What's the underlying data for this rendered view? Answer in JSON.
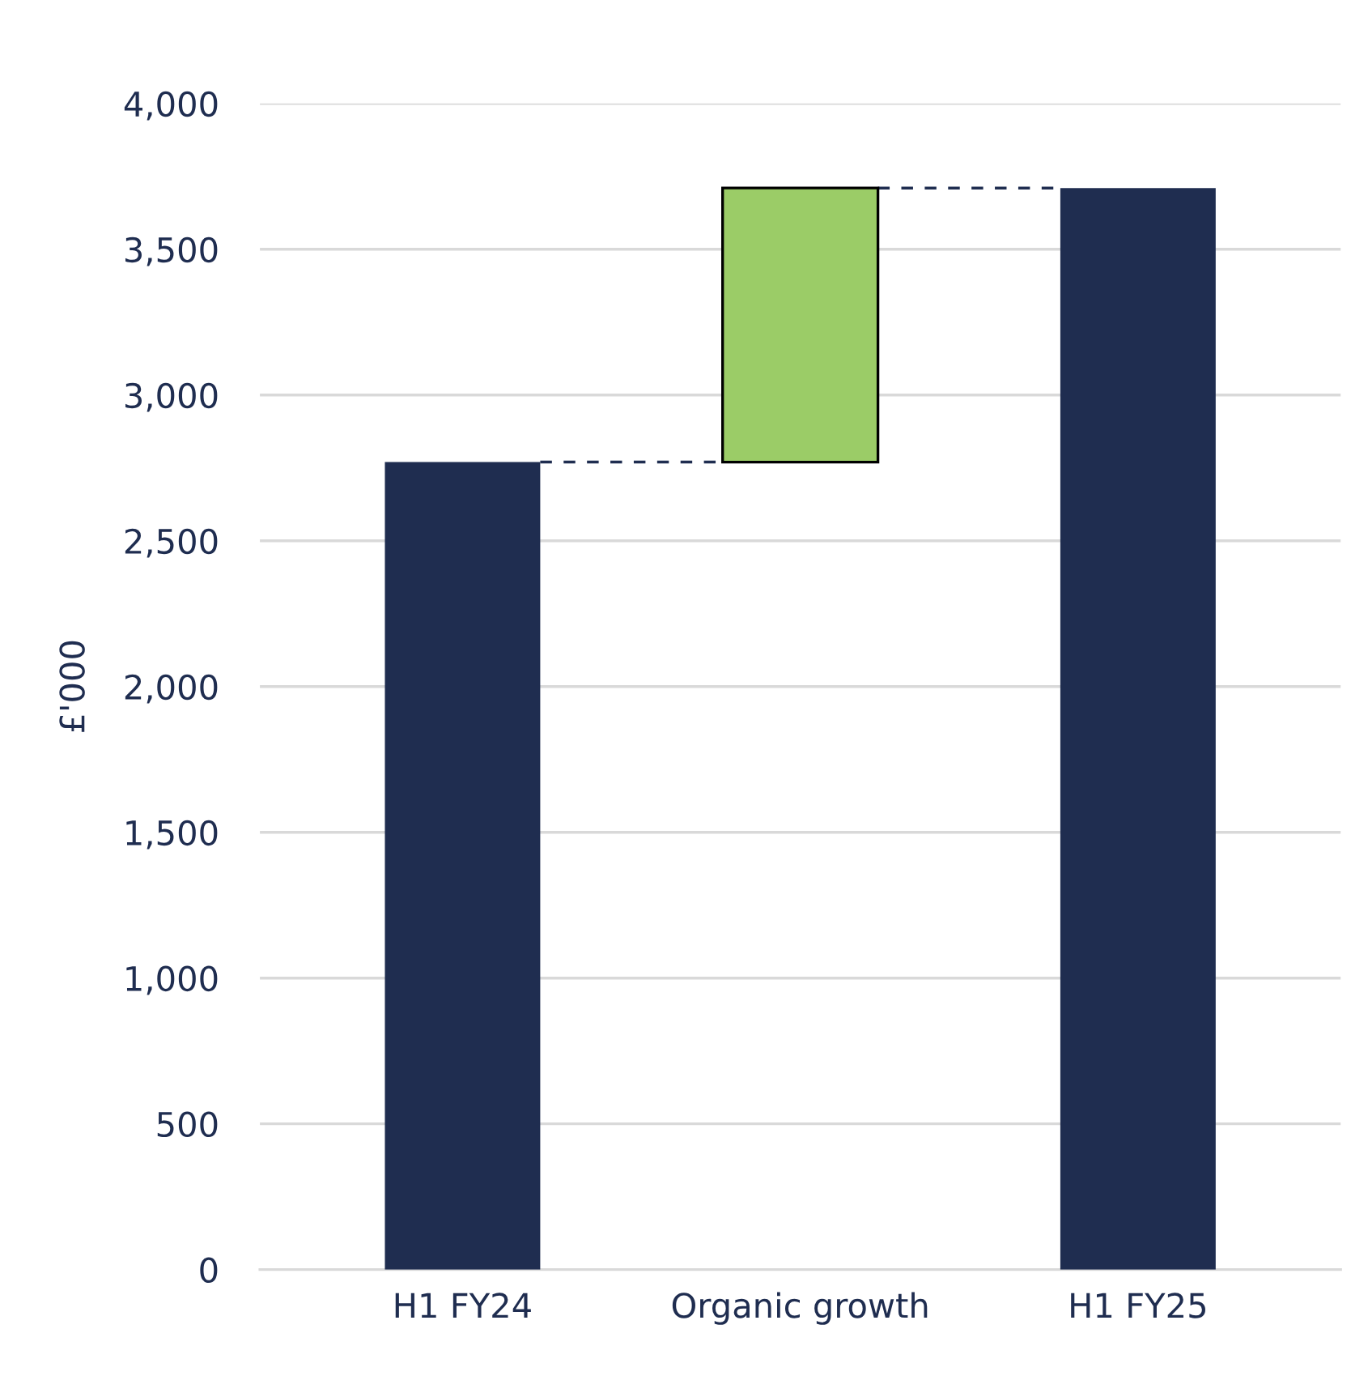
{
  "chart_data": {
    "type": "bar",
    "ylabel": "£'000",
    "categories": [
      "H1 FY24",
      "Organic growth",
      "H1 FY25"
    ],
    "values": [
      2770,
      940,
      3710
    ],
    "base": [
      0,
      2770,
      0
    ],
    "colors": [
      "#1f2d50",
      "#9bcc67",
      "#1f2d50"
    ],
    "ylim": [
      0,
      4000
    ],
    "yticks": [
      {
        "value": 0,
        "label": "0"
      },
      {
        "value": 500,
        "label": "500"
      },
      {
        "value": 1000,
        "label": "1,000"
      },
      {
        "value": 1500,
        "label": "1,500"
      },
      {
        "value": 2000,
        "label": "2,000"
      },
      {
        "value": 2500,
        "label": "2,500"
      },
      {
        "value": 3000,
        "label": "3,000"
      },
      {
        "value": 3500,
        "label": "3,500"
      },
      {
        "value": 4000,
        "label": "4,000"
      }
    ],
    "ref_lines": [
      {
        "axis": "y",
        "value": 2770,
        "color": "#1f2d50",
        "line_style": "dashed"
      },
      {
        "axis": "y",
        "value": 3710,
        "color": "#1f2d50",
        "line_style": "dashed"
      }
    ],
    "grid": "y"
  }
}
